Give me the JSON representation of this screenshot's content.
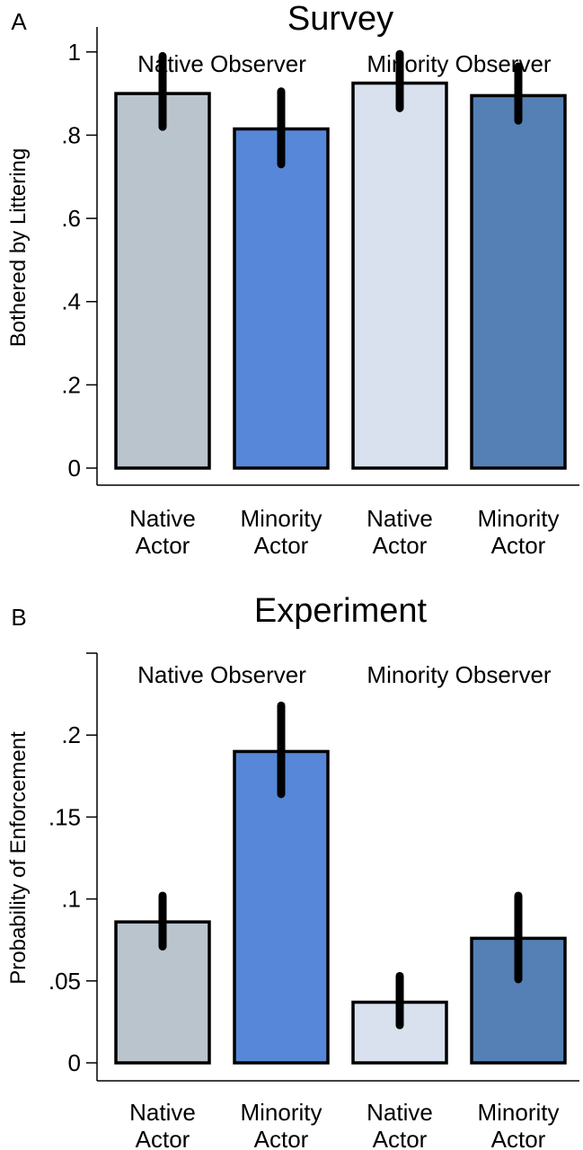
{
  "chart_data": [
    {
      "panel_label": "A",
      "type": "bar",
      "title": "Survey",
      "ylabel": "Bothered by Littering",
      "ylim": [
        0,
        1.06
      ],
      "yticks": [
        0,
        0.2,
        0.4,
        0.6,
        0.8,
        1
      ],
      "ytick_labels": [
        "0",
        ".2",
        ".4",
        ".6",
        ".8",
        "1"
      ],
      "groups": [
        "Native Observer",
        "Minority Observer"
      ],
      "categories": [
        [
          "Native",
          "Actor"
        ],
        [
          "Minority",
          "Actor"
        ],
        [
          "Native",
          "Actor"
        ],
        [
          "Minority",
          "Actor"
        ]
      ],
      "values": [
        0.9,
        0.815,
        0.925,
        0.895
      ],
      "ci_low": [
        0.82,
        0.73,
        0.865,
        0.835
      ],
      "ci_high": [
        0.99,
        0.905,
        0.995,
        0.965
      ],
      "colors": [
        "#BAC4CD",
        "#5787D8",
        "#D9E1EE",
        "#5580B5"
      ],
      "grid": false
    },
    {
      "panel_label": "B",
      "type": "bar",
      "title": "Experiment",
      "ylabel": "Probability of Enforcement",
      "ylim": [
        0,
        0.25
      ],
      "yticks": [
        0,
        0.05,
        0.1,
        0.15,
        0.2,
        0.25
      ],
      "ytick_labels": [
        "0",
        ".05",
        ".1",
        ".15",
        ".2",
        ""
      ],
      "groups": [
        "Native Observer",
        "Minority Observer"
      ],
      "categories": [
        [
          "Native",
          "Actor"
        ],
        [
          "Minority",
          "Actor"
        ],
        [
          "Native",
          "Actor"
        ],
        [
          "Minority",
          "Actor"
        ]
      ],
      "values": [
        0.086,
        0.19,
        0.037,
        0.076
      ],
      "ci_low": [
        0.071,
        0.164,
        0.023,
        0.051
      ],
      "ci_high": [
        0.102,
        0.218,
        0.053,
        0.102
      ],
      "colors": [
        "#BAC4CD",
        "#5787D8",
        "#D9E1EE",
        "#5580B5"
      ],
      "grid": false
    }
  ]
}
